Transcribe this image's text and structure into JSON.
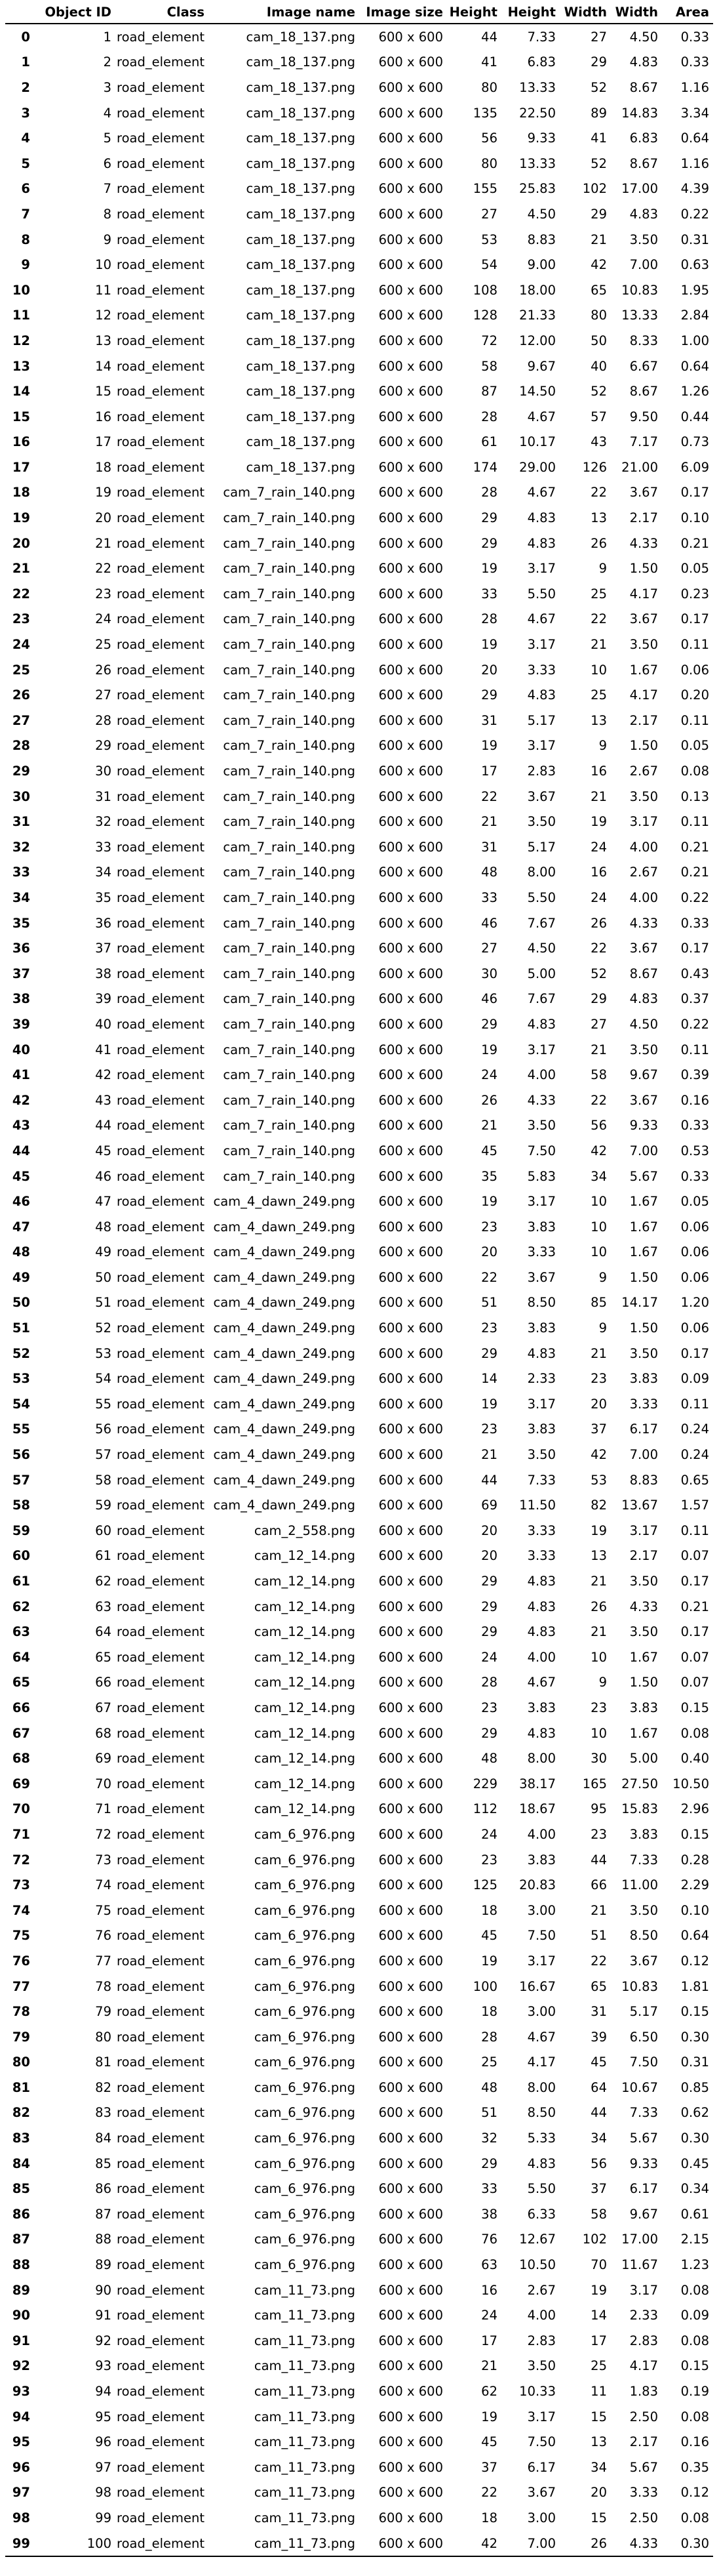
{
  "columns": [
    "",
    "Object ID",
    "Class",
    "Image name",
    "Image size",
    "Height",
    "Height",
    "Width",
    "Width",
    "Area"
  ],
  "rows": [
    [
      "0",
      "1",
      "road_element",
      "cam_18_137.png",
      "600 x 600",
      "44",
      "7.33",
      "27",
      "4.50",
      "0.33"
    ],
    [
      "1",
      "2",
      "road_element",
      "cam_18_137.png",
      "600 x 600",
      "41",
      "6.83",
      "29",
      "4.83",
      "0.33"
    ],
    [
      "2",
      "3",
      "road_element",
      "cam_18_137.png",
      "600 x 600",
      "80",
      "13.33",
      "52",
      "8.67",
      "1.16"
    ],
    [
      "3",
      "4",
      "road_element",
      "cam_18_137.png",
      "600 x 600",
      "135",
      "22.50",
      "89",
      "14.83",
      "3.34"
    ],
    [
      "4",
      "5",
      "road_element",
      "cam_18_137.png",
      "600 x 600",
      "56",
      "9.33",
      "41",
      "6.83",
      "0.64"
    ],
    [
      "5",
      "6",
      "road_element",
      "cam_18_137.png",
      "600 x 600",
      "80",
      "13.33",
      "52",
      "8.67",
      "1.16"
    ],
    [
      "6",
      "7",
      "road_element",
      "cam_18_137.png",
      "600 x 600",
      "155",
      "25.83",
      "102",
      "17.00",
      "4.39"
    ],
    [
      "7",
      "8",
      "road_element",
      "cam_18_137.png",
      "600 x 600",
      "27",
      "4.50",
      "29",
      "4.83",
      "0.22"
    ],
    [
      "8",
      "9",
      "road_element",
      "cam_18_137.png",
      "600 x 600",
      "53",
      "8.83",
      "21",
      "3.50",
      "0.31"
    ],
    [
      "9",
      "10",
      "road_element",
      "cam_18_137.png",
      "600 x 600",
      "54",
      "9.00",
      "42",
      "7.00",
      "0.63"
    ],
    [
      "10",
      "11",
      "road_element",
      "cam_18_137.png",
      "600 x 600",
      "108",
      "18.00",
      "65",
      "10.83",
      "1.95"
    ],
    [
      "11",
      "12",
      "road_element",
      "cam_18_137.png",
      "600 x 600",
      "128",
      "21.33",
      "80",
      "13.33",
      "2.84"
    ],
    [
      "12",
      "13",
      "road_element",
      "cam_18_137.png",
      "600 x 600",
      "72",
      "12.00",
      "50",
      "8.33",
      "1.00"
    ],
    [
      "13",
      "14",
      "road_element",
      "cam_18_137.png",
      "600 x 600",
      "58",
      "9.67",
      "40",
      "6.67",
      "0.64"
    ],
    [
      "14",
      "15",
      "road_element",
      "cam_18_137.png",
      "600 x 600",
      "87",
      "14.50",
      "52",
      "8.67",
      "1.26"
    ],
    [
      "15",
      "16",
      "road_element",
      "cam_18_137.png",
      "600 x 600",
      "28",
      "4.67",
      "57",
      "9.50",
      "0.44"
    ],
    [
      "16",
      "17",
      "road_element",
      "cam_18_137.png",
      "600 x 600",
      "61",
      "10.17",
      "43",
      "7.17",
      "0.73"
    ],
    [
      "17",
      "18",
      "road_element",
      "cam_18_137.png",
      "600 x 600",
      "174",
      "29.00",
      "126",
      "21.00",
      "6.09"
    ],
    [
      "18",
      "19",
      "road_element",
      "cam_7_rain_140.png",
      "600 x 600",
      "28",
      "4.67",
      "22",
      "3.67",
      "0.17"
    ],
    [
      "19",
      "20",
      "road_element",
      "cam_7_rain_140.png",
      "600 x 600",
      "29",
      "4.83",
      "13",
      "2.17",
      "0.10"
    ],
    [
      "20",
      "21",
      "road_element",
      "cam_7_rain_140.png",
      "600 x 600",
      "29",
      "4.83",
      "26",
      "4.33",
      "0.21"
    ],
    [
      "21",
      "22",
      "road_element",
      "cam_7_rain_140.png",
      "600 x 600",
      "19",
      "3.17",
      "9",
      "1.50",
      "0.05"
    ],
    [
      "22",
      "23",
      "road_element",
      "cam_7_rain_140.png",
      "600 x 600",
      "33",
      "5.50",
      "25",
      "4.17",
      "0.23"
    ],
    [
      "23",
      "24",
      "road_element",
      "cam_7_rain_140.png",
      "600 x 600",
      "28",
      "4.67",
      "22",
      "3.67",
      "0.17"
    ],
    [
      "24",
      "25",
      "road_element",
      "cam_7_rain_140.png",
      "600 x 600",
      "19",
      "3.17",
      "21",
      "3.50",
      "0.11"
    ],
    [
      "25",
      "26",
      "road_element",
      "cam_7_rain_140.png",
      "600 x 600",
      "20",
      "3.33",
      "10",
      "1.67",
      "0.06"
    ],
    [
      "26",
      "27",
      "road_element",
      "cam_7_rain_140.png",
      "600 x 600",
      "29",
      "4.83",
      "25",
      "4.17",
      "0.20"
    ],
    [
      "27",
      "28",
      "road_element",
      "cam_7_rain_140.png",
      "600 x 600",
      "31",
      "5.17",
      "13",
      "2.17",
      "0.11"
    ],
    [
      "28",
      "29",
      "road_element",
      "cam_7_rain_140.png",
      "600 x 600",
      "19",
      "3.17",
      "9",
      "1.50",
      "0.05"
    ],
    [
      "29",
      "30",
      "road_element",
      "cam_7_rain_140.png",
      "600 x 600",
      "17",
      "2.83",
      "16",
      "2.67",
      "0.08"
    ],
    [
      "30",
      "31",
      "road_element",
      "cam_7_rain_140.png",
      "600 x 600",
      "22",
      "3.67",
      "21",
      "3.50",
      "0.13"
    ],
    [
      "31",
      "32",
      "road_element",
      "cam_7_rain_140.png",
      "600 x 600",
      "21",
      "3.50",
      "19",
      "3.17",
      "0.11"
    ],
    [
      "32",
      "33",
      "road_element",
      "cam_7_rain_140.png",
      "600 x 600",
      "31",
      "5.17",
      "24",
      "4.00",
      "0.21"
    ],
    [
      "33",
      "34",
      "road_element",
      "cam_7_rain_140.png",
      "600 x 600",
      "48",
      "8.00",
      "16",
      "2.67",
      "0.21"
    ],
    [
      "34",
      "35",
      "road_element",
      "cam_7_rain_140.png",
      "600 x 600",
      "33",
      "5.50",
      "24",
      "4.00",
      "0.22"
    ],
    [
      "35",
      "36",
      "road_element",
      "cam_7_rain_140.png",
      "600 x 600",
      "46",
      "7.67",
      "26",
      "4.33",
      "0.33"
    ],
    [
      "36",
      "37",
      "road_element",
      "cam_7_rain_140.png",
      "600 x 600",
      "27",
      "4.50",
      "22",
      "3.67",
      "0.17"
    ],
    [
      "37",
      "38",
      "road_element",
      "cam_7_rain_140.png",
      "600 x 600",
      "30",
      "5.00",
      "52",
      "8.67",
      "0.43"
    ],
    [
      "38",
      "39",
      "road_element",
      "cam_7_rain_140.png",
      "600 x 600",
      "46",
      "7.67",
      "29",
      "4.83",
      "0.37"
    ],
    [
      "39",
      "40",
      "road_element",
      "cam_7_rain_140.png",
      "600 x 600",
      "29",
      "4.83",
      "27",
      "4.50",
      "0.22"
    ],
    [
      "40",
      "41",
      "road_element",
      "cam_7_rain_140.png",
      "600 x 600",
      "19",
      "3.17",
      "21",
      "3.50",
      "0.11"
    ],
    [
      "41",
      "42",
      "road_element",
      "cam_7_rain_140.png",
      "600 x 600",
      "24",
      "4.00",
      "58",
      "9.67",
      "0.39"
    ],
    [
      "42",
      "43",
      "road_element",
      "cam_7_rain_140.png",
      "600 x 600",
      "26",
      "4.33",
      "22",
      "3.67",
      "0.16"
    ],
    [
      "43",
      "44",
      "road_element",
      "cam_7_rain_140.png",
      "600 x 600",
      "21",
      "3.50",
      "56",
      "9.33",
      "0.33"
    ],
    [
      "44",
      "45",
      "road_element",
      "cam_7_rain_140.png",
      "600 x 600",
      "45",
      "7.50",
      "42",
      "7.00",
      "0.53"
    ],
    [
      "45",
      "46",
      "road_element",
      "cam_7_rain_140.png",
      "600 x 600",
      "35",
      "5.83",
      "34",
      "5.67",
      "0.33"
    ],
    [
      "46",
      "47",
      "road_element",
      "cam_4_dawn_249.png",
      "600 x 600",
      "19",
      "3.17",
      "10",
      "1.67",
      "0.05"
    ],
    [
      "47",
      "48",
      "road_element",
      "cam_4_dawn_249.png",
      "600 x 600",
      "23",
      "3.83",
      "10",
      "1.67",
      "0.06"
    ],
    [
      "48",
      "49",
      "road_element",
      "cam_4_dawn_249.png",
      "600 x 600",
      "20",
      "3.33",
      "10",
      "1.67",
      "0.06"
    ],
    [
      "49",
      "50",
      "road_element",
      "cam_4_dawn_249.png",
      "600 x 600",
      "22",
      "3.67",
      "9",
      "1.50",
      "0.06"
    ],
    [
      "50",
      "51",
      "road_element",
      "cam_4_dawn_249.png",
      "600 x 600",
      "51",
      "8.50",
      "85",
      "14.17",
      "1.20"
    ],
    [
      "51",
      "52",
      "road_element",
      "cam_4_dawn_249.png",
      "600 x 600",
      "23",
      "3.83",
      "9",
      "1.50",
      "0.06"
    ],
    [
      "52",
      "53",
      "road_element",
      "cam_4_dawn_249.png",
      "600 x 600",
      "29",
      "4.83",
      "21",
      "3.50",
      "0.17"
    ],
    [
      "53",
      "54",
      "road_element",
      "cam_4_dawn_249.png",
      "600 x 600",
      "14",
      "2.33",
      "23",
      "3.83",
      "0.09"
    ],
    [
      "54",
      "55",
      "road_element",
      "cam_4_dawn_249.png",
      "600 x 600",
      "19",
      "3.17",
      "20",
      "3.33",
      "0.11"
    ],
    [
      "55",
      "56",
      "road_element",
      "cam_4_dawn_249.png",
      "600 x 600",
      "23",
      "3.83",
      "37",
      "6.17",
      "0.24"
    ],
    [
      "56",
      "57",
      "road_element",
      "cam_4_dawn_249.png",
      "600 x 600",
      "21",
      "3.50",
      "42",
      "7.00",
      "0.24"
    ],
    [
      "57",
      "58",
      "road_element",
      "cam_4_dawn_249.png",
      "600 x 600",
      "44",
      "7.33",
      "53",
      "8.83",
      "0.65"
    ],
    [
      "58",
      "59",
      "road_element",
      "cam_4_dawn_249.png",
      "600 x 600",
      "69",
      "11.50",
      "82",
      "13.67",
      "1.57"
    ],
    [
      "59",
      "60",
      "road_element",
      "cam_2_558.png",
      "600 x 600",
      "20",
      "3.33",
      "19",
      "3.17",
      "0.11"
    ],
    [
      "60",
      "61",
      "road_element",
      "cam_12_14.png",
      "600 x 600",
      "20",
      "3.33",
      "13",
      "2.17",
      "0.07"
    ],
    [
      "61",
      "62",
      "road_element",
      "cam_12_14.png",
      "600 x 600",
      "29",
      "4.83",
      "21",
      "3.50",
      "0.17"
    ],
    [
      "62",
      "63",
      "road_element",
      "cam_12_14.png",
      "600 x 600",
      "29",
      "4.83",
      "26",
      "4.33",
      "0.21"
    ],
    [
      "63",
      "64",
      "road_element",
      "cam_12_14.png",
      "600 x 600",
      "29",
      "4.83",
      "21",
      "3.50",
      "0.17"
    ],
    [
      "64",
      "65",
      "road_element",
      "cam_12_14.png",
      "600 x 600",
      "24",
      "4.00",
      "10",
      "1.67",
      "0.07"
    ],
    [
      "65",
      "66",
      "road_element",
      "cam_12_14.png",
      "600 x 600",
      "28",
      "4.67",
      "9",
      "1.50",
      "0.07"
    ],
    [
      "66",
      "67",
      "road_element",
      "cam_12_14.png",
      "600 x 600",
      "23",
      "3.83",
      "23",
      "3.83",
      "0.15"
    ],
    [
      "67",
      "68",
      "road_element",
      "cam_12_14.png",
      "600 x 600",
      "29",
      "4.83",
      "10",
      "1.67",
      "0.08"
    ],
    [
      "68",
      "69",
      "road_element",
      "cam_12_14.png",
      "600 x 600",
      "48",
      "8.00",
      "30",
      "5.00",
      "0.40"
    ],
    [
      "69",
      "70",
      "road_element",
      "cam_12_14.png",
      "600 x 600",
      "229",
      "38.17",
      "165",
      "27.50",
      "10.50"
    ],
    [
      "70",
      "71",
      "road_element",
      "cam_12_14.png",
      "600 x 600",
      "112",
      "18.67",
      "95",
      "15.83",
      "2.96"
    ],
    [
      "71",
      "72",
      "road_element",
      "cam_6_976.png",
      "600 x 600",
      "24",
      "4.00",
      "23",
      "3.83",
      "0.15"
    ],
    [
      "72",
      "73",
      "road_element",
      "cam_6_976.png",
      "600 x 600",
      "23",
      "3.83",
      "44",
      "7.33",
      "0.28"
    ],
    [
      "73",
      "74",
      "road_element",
      "cam_6_976.png",
      "600 x 600",
      "125",
      "20.83",
      "66",
      "11.00",
      "2.29"
    ],
    [
      "74",
      "75",
      "road_element",
      "cam_6_976.png",
      "600 x 600",
      "18",
      "3.00",
      "21",
      "3.50",
      "0.10"
    ],
    [
      "75",
      "76",
      "road_element",
      "cam_6_976.png",
      "600 x 600",
      "45",
      "7.50",
      "51",
      "8.50",
      "0.64"
    ],
    [
      "76",
      "77",
      "road_element",
      "cam_6_976.png",
      "600 x 600",
      "19",
      "3.17",
      "22",
      "3.67",
      "0.12"
    ],
    [
      "77",
      "78",
      "road_element",
      "cam_6_976.png",
      "600 x 600",
      "100",
      "16.67",
      "65",
      "10.83",
      "1.81"
    ],
    [
      "78",
      "79",
      "road_element",
      "cam_6_976.png",
      "600 x 600",
      "18",
      "3.00",
      "31",
      "5.17",
      "0.15"
    ],
    [
      "79",
      "80",
      "road_element",
      "cam_6_976.png",
      "600 x 600",
      "28",
      "4.67",
      "39",
      "6.50",
      "0.30"
    ],
    [
      "80",
      "81",
      "road_element",
      "cam_6_976.png",
      "600 x 600",
      "25",
      "4.17",
      "45",
      "7.50",
      "0.31"
    ],
    [
      "81",
      "82",
      "road_element",
      "cam_6_976.png",
      "600 x 600",
      "48",
      "8.00",
      "64",
      "10.67",
      "0.85"
    ],
    [
      "82",
      "83",
      "road_element",
      "cam_6_976.png",
      "600 x 600",
      "51",
      "8.50",
      "44",
      "7.33",
      "0.62"
    ],
    [
      "83",
      "84",
      "road_element",
      "cam_6_976.png",
      "600 x 600",
      "32",
      "5.33",
      "34",
      "5.67",
      "0.30"
    ],
    [
      "84",
      "85",
      "road_element",
      "cam_6_976.png",
      "600 x 600",
      "29",
      "4.83",
      "56",
      "9.33",
      "0.45"
    ],
    [
      "85",
      "86",
      "road_element",
      "cam_6_976.png",
      "600 x 600",
      "33",
      "5.50",
      "37",
      "6.17",
      "0.34"
    ],
    [
      "86",
      "87",
      "road_element",
      "cam_6_976.png",
      "600 x 600",
      "38",
      "6.33",
      "58",
      "9.67",
      "0.61"
    ],
    [
      "87",
      "88",
      "road_element",
      "cam_6_976.png",
      "600 x 600",
      "76",
      "12.67",
      "102",
      "17.00",
      "2.15"
    ],
    [
      "88",
      "89",
      "road_element",
      "cam_6_976.png",
      "600 x 600",
      "63",
      "10.50",
      "70",
      "11.67",
      "1.23"
    ],
    [
      "89",
      "90",
      "road_element",
      "cam_11_73.png",
      "600 x 600",
      "16",
      "2.67",
      "19",
      "3.17",
      "0.08"
    ],
    [
      "90",
      "91",
      "road_element",
      "cam_11_73.png",
      "600 x 600",
      "24",
      "4.00",
      "14",
      "2.33",
      "0.09"
    ],
    [
      "91",
      "92",
      "road_element",
      "cam_11_73.png",
      "600 x 600",
      "17",
      "2.83",
      "17",
      "2.83",
      "0.08"
    ],
    [
      "92",
      "93",
      "road_element",
      "cam_11_73.png",
      "600 x 600",
      "21",
      "3.50",
      "25",
      "4.17",
      "0.15"
    ],
    [
      "93",
      "94",
      "road_element",
      "cam_11_73.png",
      "600 x 600",
      "62",
      "10.33",
      "11",
      "1.83",
      "0.19"
    ],
    [
      "94",
      "95",
      "road_element",
      "cam_11_73.png",
      "600 x 600",
      "19",
      "3.17",
      "15",
      "2.50",
      "0.08"
    ],
    [
      "95",
      "96",
      "road_element",
      "cam_11_73.png",
      "600 x 600",
      "45",
      "7.50",
      "13",
      "2.17",
      "0.16"
    ],
    [
      "96",
      "97",
      "road_element",
      "cam_11_73.png",
      "600 x 600",
      "37",
      "6.17",
      "34",
      "5.67",
      "0.35"
    ],
    [
      "97",
      "98",
      "road_element",
      "cam_11_73.png",
      "600 x 600",
      "22",
      "3.67",
      "20",
      "3.33",
      "0.12"
    ],
    [
      "98",
      "99",
      "road_element",
      "cam_11_73.png",
      "600 x 600",
      "18",
      "3.00",
      "15",
      "2.50",
      "0.08"
    ],
    [
      "99",
      "100",
      "road_element",
      "cam_11_73.png",
      "600 x 600",
      "42",
      "7.00",
      "26",
      "4.33",
      "0.30"
    ]
  ]
}
